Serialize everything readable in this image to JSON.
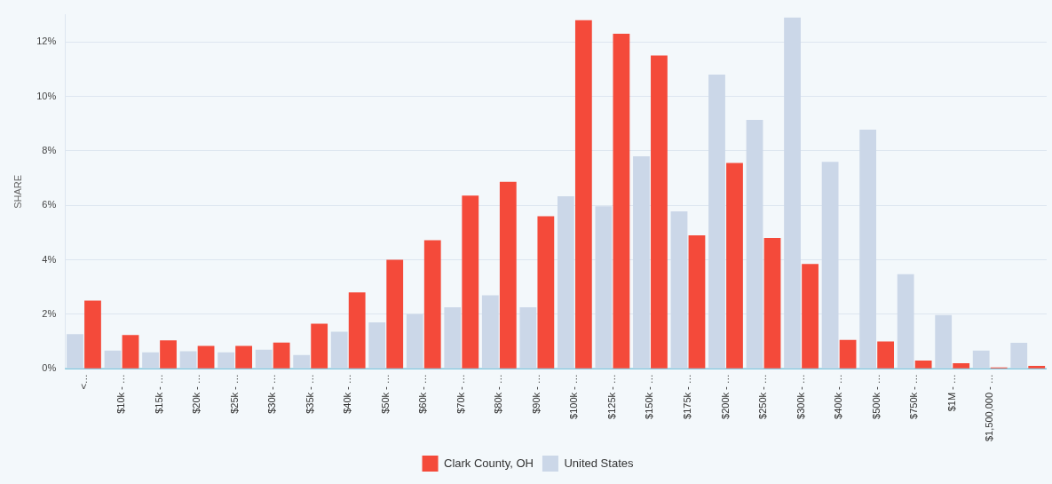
{
  "chart_data": {
    "type": "bar",
    "ylabel": "SHARE",
    "categories": [
      "<…",
      "$10k - …",
      "$15k - …",
      "$20k - …",
      "$25k - …",
      "$30k - …",
      "$35k - …",
      "$40k - …",
      "$50k - …",
      "$60k - …",
      "$70k - …",
      "$80k - …",
      "$90k - …",
      "$100k - …",
      "$125k - …",
      "$150k - …",
      "$175k - …",
      "$200k - …",
      "$250k - …",
      "$300k - …",
      "$400k - …",
      "$500k - …",
      "$750k - …",
      "$1M - …",
      "$1,500,000 - …",
      null
    ],
    "series": [
      {
        "name": "Clark County, OH",
        "color": "#f44a3a",
        "values": [
          2.5,
          1.24,
          1.04,
          0.84,
          0.84,
          0.96,
          1.65,
          2.8,
          4.0,
          4.72,
          6.36,
          6.86,
          5.6,
          12.8,
          12.3,
          11.5,
          4.9,
          7.56,
          4.8,
          3.85,
          1.06,
          1.0,
          0.3,
          0.2,
          0.05,
          0.1
        ]
      },
      {
        "name": "United States",
        "color": "#cbd7e8",
        "values": [
          1.27,
          0.67,
          0.6,
          0.64,
          0.6,
          0.7,
          0.5,
          1.36,
          1.7,
          2.0,
          2.26,
          2.7,
          2.26,
          6.33,
          5.97,
          7.8,
          5.78,
          10.8,
          9.14,
          12.9,
          7.6,
          8.78,
          3.47,
          1.97,
          0.67,
          0.95
        ]
      }
    ],
    "ylim": [
      0,
      13
    ],
    "yticks": [
      {
        "value": 0,
        "label": "0%"
      },
      {
        "value": 2,
        "label": "2%"
      },
      {
        "value": 4,
        "label": "4%"
      },
      {
        "value": 6,
        "label": "6%"
      },
      {
        "value": 8,
        "label": "8%"
      },
      {
        "value": 10,
        "label": "10%"
      },
      {
        "value": 12,
        "label": "12%"
      }
    ],
    "grid": "y",
    "legend": "bottom"
  }
}
